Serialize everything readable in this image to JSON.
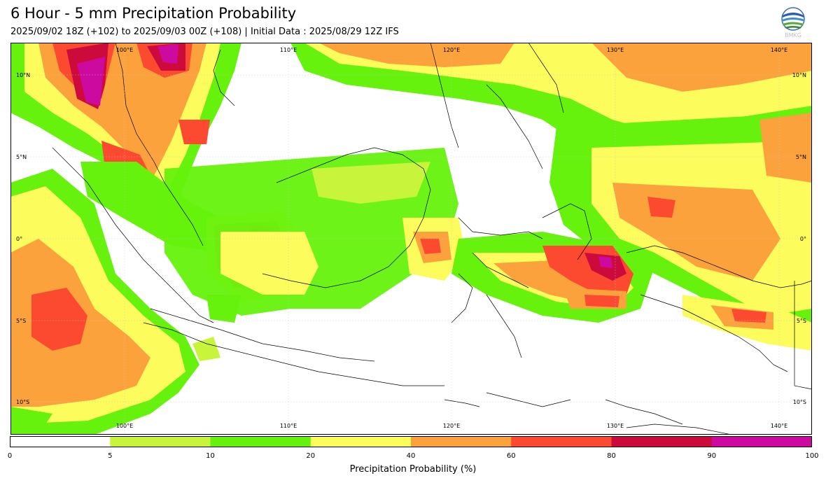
{
  "title": "6 Hour - 5 mm Precipitation Probability",
  "subtitle": "2025/09/02 18Z (+102) to 2025/09/03 00Z (+108) | Initial Data : 2025/08/29 12Z IFS",
  "logo": {
    "text": "BMKG"
  },
  "map": {
    "extent": {
      "lon": [
        93,
        142
      ],
      "lat": [
        -12,
        12
      ]
    },
    "lon_labels": [
      "100°E",
      "110°E",
      "120°E",
      "130°E",
      "140°E"
    ],
    "lat_labels": [
      "10°N",
      "5°N",
      "0°",
      "5°S",
      "10°S"
    ]
  },
  "colorbar": {
    "label": "Precipitation Probability (%)",
    "ticks": [
      "0",
      "5",
      "10",
      "20",
      "40",
      "60",
      "80",
      "90",
      "100"
    ],
    "colors": [
      "#ffffff",
      "#c8f53c",
      "#66f20c",
      "#fcfc5c",
      "#fca23c",
      "#fc4a30",
      "#cc0a3c",
      "#cc0aa0"
    ]
  }
}
